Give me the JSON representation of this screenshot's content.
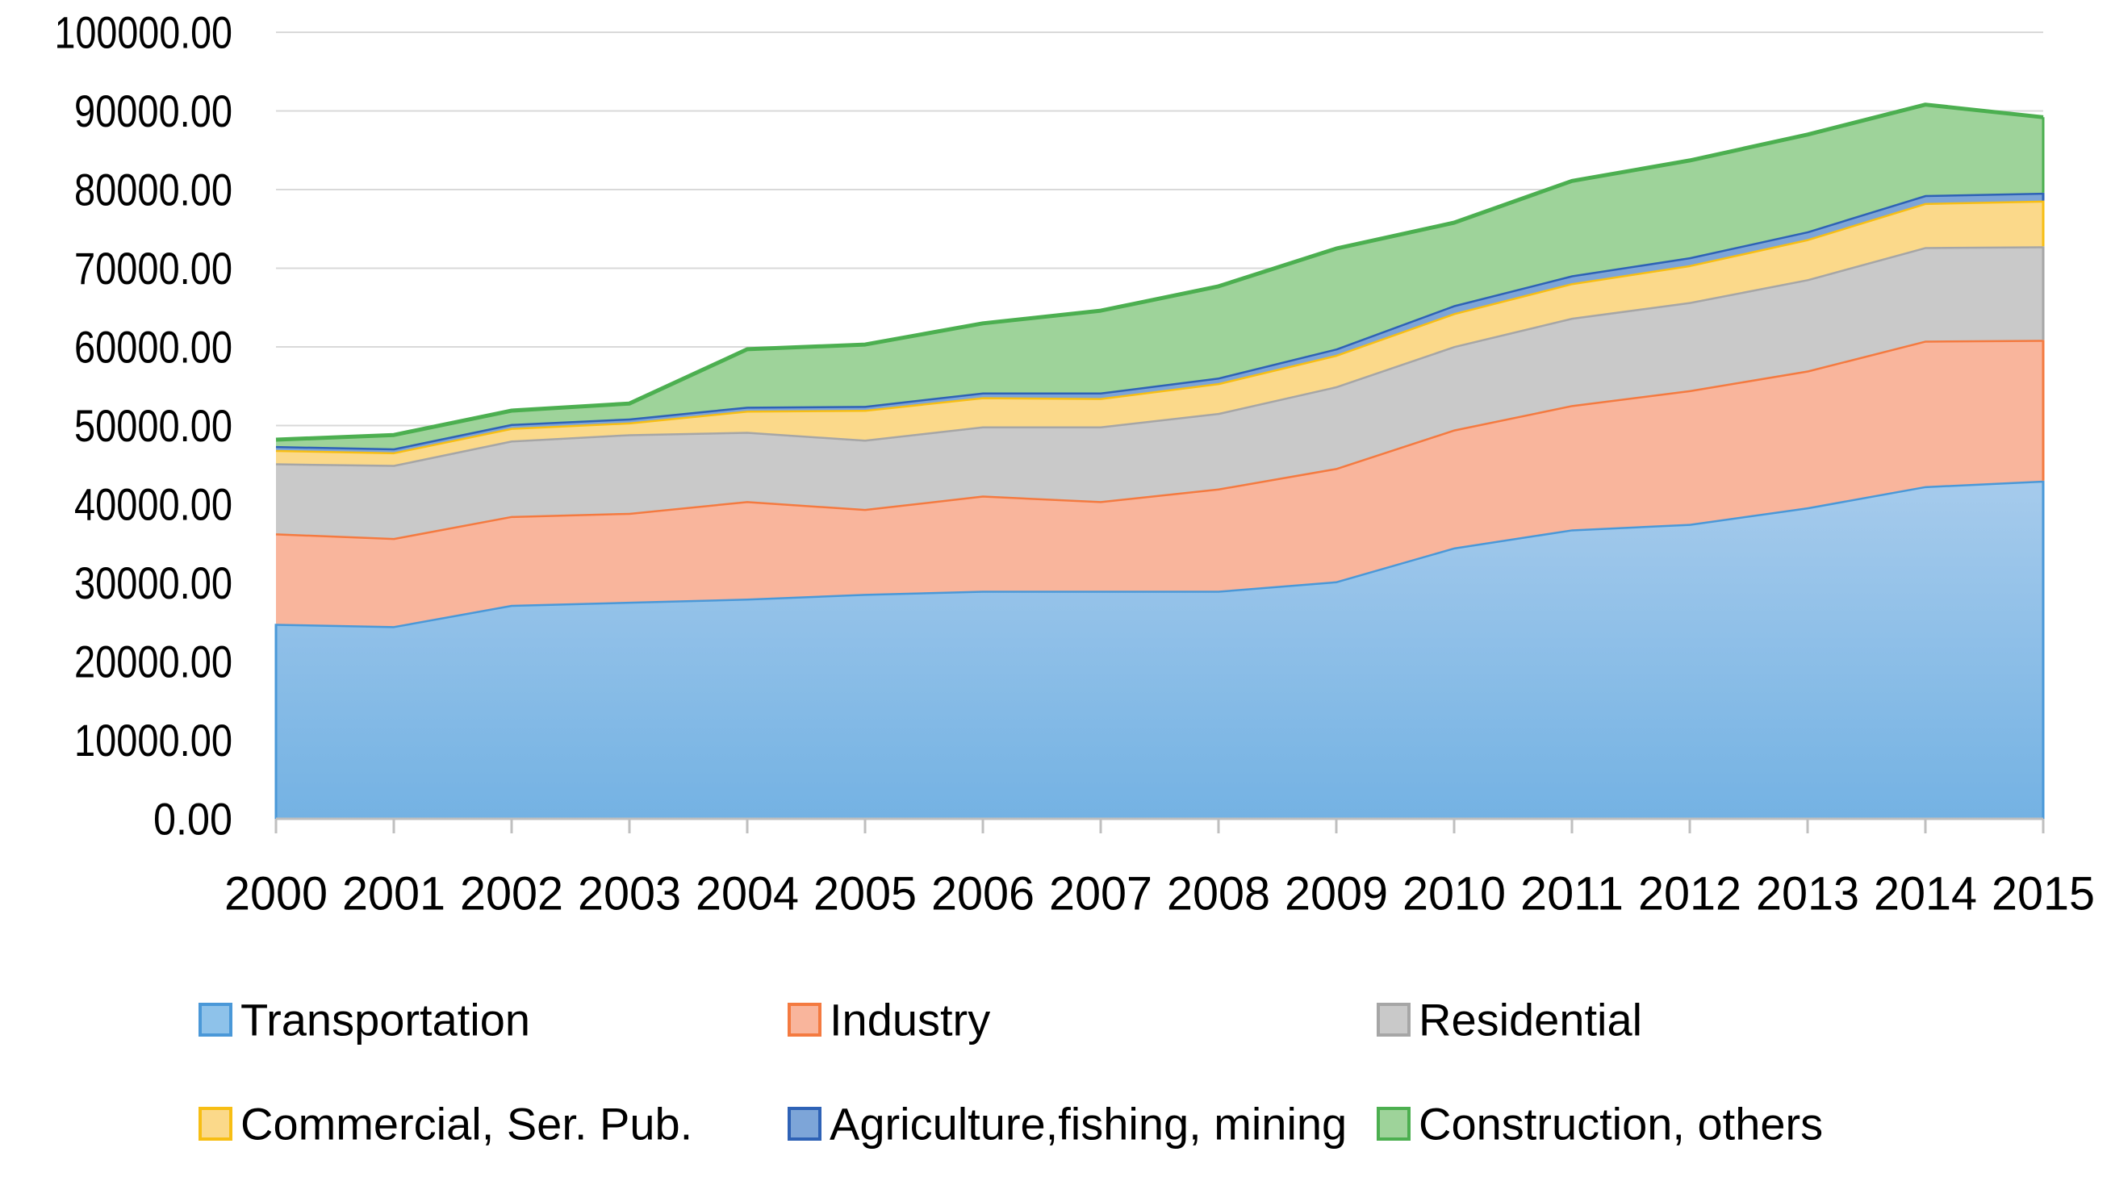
{
  "chart_data": {
    "type": "area",
    "stacked": true,
    "title": "",
    "xlabel": "",
    "ylabel": "",
    "ylim": [
      0,
      100000
    ],
    "y_ticks": [
      0,
      10000,
      20000,
      30000,
      40000,
      50000,
      60000,
      70000,
      80000,
      90000,
      100000
    ],
    "y_tick_labels": [
      "0.00",
      "10000.00",
      "20000.00",
      "30000.00",
      "40000.00",
      "50000.00",
      "60000.00",
      "70000.00",
      "80000.00",
      "90000.00",
      "100000.00"
    ],
    "grid": true,
    "legend_position": "bottom",
    "categories": [
      "2000",
      "2001",
      "2002",
      "2003",
      "2004",
      "2005",
      "2006",
      "2007",
      "2008",
      "2009",
      "2010",
      "2011",
      "2012",
      "2013",
      "2014",
      "2015"
    ],
    "series": [
      {
        "name": "Transportation",
        "fill": "#8ec2ea",
        "stroke": "#4a98d8",
        "values": [
          24800,
          24500,
          27200,
          27600,
          28000,
          28600,
          29000,
          29000,
          29000,
          30200,
          34500,
          36800,
          37500,
          39600,
          42300,
          43000
        ]
      },
      {
        "name": "Industry",
        "fill": "#f9b59c",
        "stroke": "#f47a40",
        "values": [
          11500,
          11200,
          11300,
          11300,
          12400,
          10800,
          12100,
          11400,
          13000,
          14400,
          15000,
          15800,
          17000,
          17400,
          18500,
          17900
        ]
      },
      {
        "name": "Residential",
        "fill": "#c9c9c9",
        "stroke": "#a6a6a6",
        "values": [
          8900,
          9300,
          9600,
          10000,
          8800,
          8800,
          8800,
          9500,
          9600,
          10400,
          10600,
          11100,
          11200,
          11600,
          11900,
          11900
        ]
      },
      {
        "name": "Commercial, Ser. Pub.",
        "fill": "#fbd98a",
        "stroke": "#f7be14",
        "values": [
          1700,
          1600,
          1600,
          1500,
          2700,
          3800,
          3700,
          3600,
          3800,
          4000,
          4200,
          4400,
          4700,
          5100,
          5600,
          5800
        ]
      },
      {
        "name": "Agriculture,fishing, mining",
        "fill": "#7da5d8",
        "stroke": "#2e62b6",
        "values": [
          500,
          500,
          500,
          500,
          500,
          500,
          600,
          700,
          700,
          800,
          1000,
          1000,
          1000,
          1000,
          1000,
          1000
        ]
      },
      {
        "name": "Construction, others",
        "fill": "#9ed39a",
        "stroke": "#4caf50",
        "values": [
          800,
          1700,
          1700,
          1900,
          7300,
          7800,
          8800,
          10400,
          11600,
          12700,
          10500,
          12000,
          12300,
          12300,
          11500,
          9600
        ]
      }
    ]
  }
}
